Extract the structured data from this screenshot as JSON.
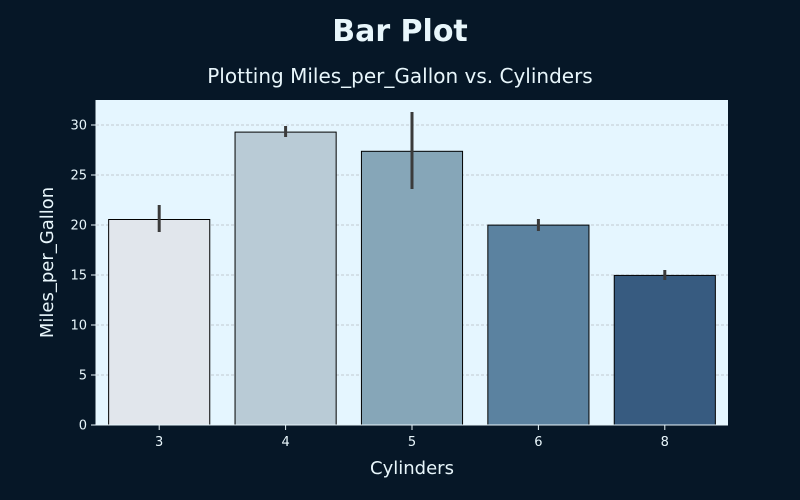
{
  "chart_data": {
    "type": "bar",
    "title": "Bar Plot",
    "subtitle": "Plotting Miles_per_Gallon vs. Cylinders",
    "xlabel": "Cylinders",
    "ylabel": "Miles_per_Gallon",
    "categories": [
      "3",
      "4",
      "5",
      "6",
      "8"
    ],
    "values": [
      20.55,
      29.29,
      27.37,
      19.99,
      14.96
    ],
    "error_low": [
      19.3,
      28.8,
      23.6,
      19.4,
      14.5
    ],
    "error_high": [
      22.0,
      29.9,
      31.3,
      20.6,
      15.5
    ],
    "ylim": [
      0,
      32.5
    ],
    "yticks": [
      0,
      5,
      10,
      15,
      20,
      25,
      30
    ],
    "grid": "horizontal dashed",
    "colors": {
      "background": "#061727",
      "plot_background": "#e5f6ff",
      "text": "#e8f6fb",
      "bar_edge": "#000000",
      "error_bar": "#3b3b3b",
      "bars": [
        "#e1e6ec",
        "#b9cbd6",
        "#86a6b8",
        "#5b82a0",
        "#375b80"
      ]
    }
  }
}
